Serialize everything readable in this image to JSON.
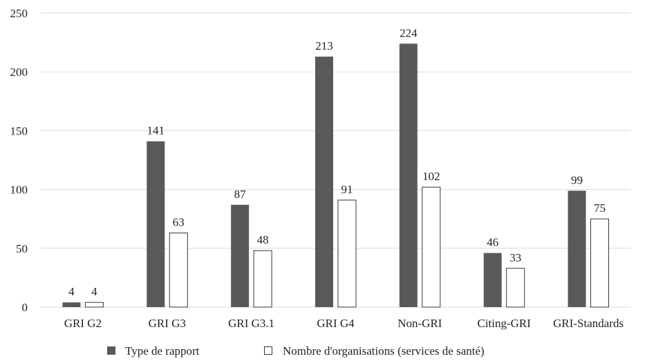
{
  "chart_data": {
    "type": "bar",
    "categories": [
      "GRI G2",
      "GRI G3",
      "GRI G3.1",
      "GRI G4",
      "Non-GRI",
      "Citing-GRI",
      "GRI-Standards"
    ],
    "series": [
      {
        "name": "Type de rapport",
        "values": [
          4,
          141,
          87,
          213,
          224,
          46,
          99
        ],
        "color": "#595959",
        "fill": "solid"
      },
      {
        "name": "Nombre d'organisations (services de santé)",
        "values": [
          4,
          63,
          48,
          91,
          102,
          33,
          75
        ],
        "color": "#ffffff",
        "fill": "outline"
      }
    ],
    "yticks": [
      "0",
      "50",
      "100",
      "150",
      "200",
      "250"
    ],
    "ylim": [
      0,
      250
    ],
    "grid": "horizontal",
    "legend_position": "bottom"
  }
}
